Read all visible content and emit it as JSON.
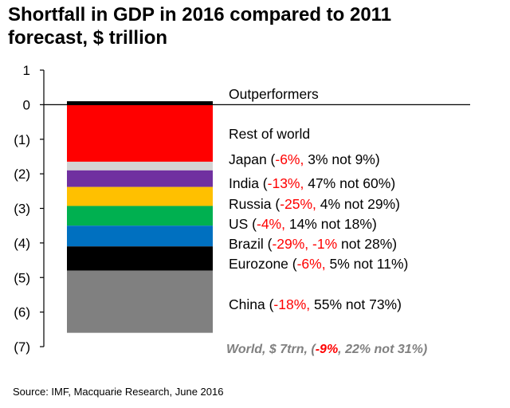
{
  "chart_data": {
    "type": "bar",
    "title": "Shortfall in GDP in 2016 compared to 2011\nforecast, $ trillion",
    "ylim": [
      -7,
      1
    ],
    "yticks": [
      {
        "value": 1,
        "label": "1"
      },
      {
        "value": 0,
        "label": "0"
      },
      {
        "value": -1,
        "label": "(1)"
      },
      {
        "value": -2,
        "label": "(2)"
      },
      {
        "value": -3,
        "label": "(3)"
      },
      {
        "value": -4,
        "label": "(4)"
      },
      {
        "value": -5,
        "label": "(5)"
      },
      {
        "value": -6,
        "label": "(6)"
      },
      {
        "value": -7,
        "label": "(7)"
      }
    ],
    "baseline": 0,
    "segments": [
      {
        "id": "outperformers",
        "label": [
          {
            "t": "Outperformers"
          }
        ],
        "value": 0.1,
        "color": "#000000"
      },
      {
        "id": "rest-of-world",
        "label": [
          {
            "t": "Rest of world"
          }
        ],
        "value": -1.65,
        "color": "#ff0000"
      },
      {
        "id": "japan",
        "label": [
          {
            "t": "Japan ("
          },
          {
            "t": "-6%,",
            "red": true
          },
          {
            "t": " 3% not 9%)"
          }
        ],
        "value": -0.25,
        "color": "#d3d3d3"
      },
      {
        "id": "india",
        "label": [
          {
            "t": "India ("
          },
          {
            "t": "-13%,",
            "red": true
          },
          {
            "t": " 47% not 60%)"
          }
        ],
        "value": -0.48,
        "color": "#7030a0"
      },
      {
        "id": "russia",
        "label": [
          {
            "t": "Russia ("
          },
          {
            "t": "-25%,",
            "red": true
          },
          {
            "t": " 4% not 29%)"
          }
        ],
        "value": -0.55,
        "color": "#ffc000"
      },
      {
        "id": "us",
        "label": [
          {
            "t": "US ("
          },
          {
            "t": "-4%,",
            "red": true
          },
          {
            "t": " 14% not 18%)"
          }
        ],
        "value": -0.57,
        "color": "#00b050"
      },
      {
        "id": "brazil",
        "label": [
          {
            "t": "Brazil ("
          },
          {
            "t": "-29%,",
            "red": true
          },
          {
            "t": " "
          },
          {
            "t": "-1%",
            "red": true
          },
          {
            "t": " not 28%)"
          }
        ],
        "value": -0.6,
        "color": "#0070c0"
      },
      {
        "id": "eurozone",
        "label": [
          {
            "t": "Eurozone ("
          },
          {
            "t": "-6%,",
            "red": true
          },
          {
            "t": " 5% not 11%)"
          }
        ],
        "value": -0.7,
        "color": "#000000"
      },
      {
        "id": "china",
        "label": [
          {
            "t": "China ("
          },
          {
            "t": "-18%,",
            "red": true
          },
          {
            "t": " 55% not 73%)"
          }
        ],
        "value": -1.8,
        "color": "#808080"
      }
    ],
    "total": {
      "label": [
        {
          "t": "World, $ 7trn, ("
        },
        {
          "t": "-9%",
          "red": true
        },
        {
          "t": ", 22% not 31%)"
        }
      ],
      "value": -7
    },
    "colors": {
      "axis": "#000000",
      "label": "#000000",
      "highlight": "#ff0000",
      "total_label": "#808080"
    }
  },
  "source": "Source: IMF, Macquarie Research, June 2016"
}
